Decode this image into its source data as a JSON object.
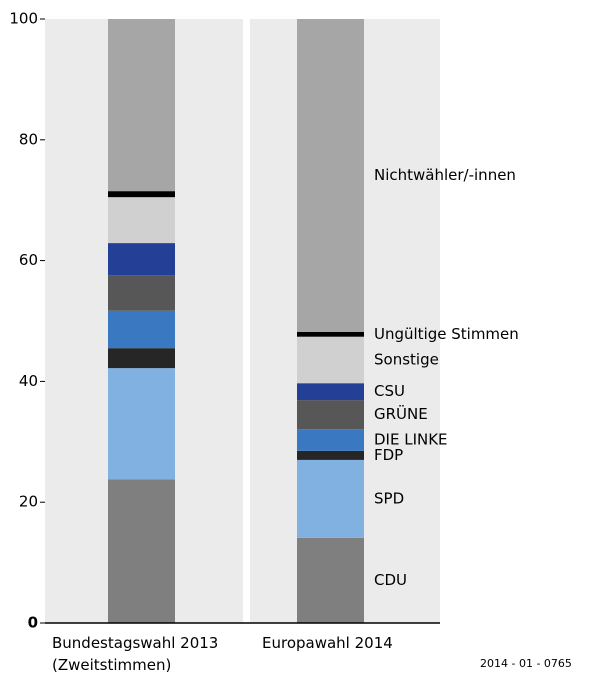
{
  "chart_data": {
    "type": "stacked-bar",
    "categories": [
      "Bundestagswahl 2013\n(Zweitstimmen)",
      "Europawahl 2014"
    ],
    "series": [
      {
        "name": "CDU",
        "color": "#7f7f7f",
        "values": [
          23.8,
          14.1
        ]
      },
      {
        "name": "SPD",
        "color": "#80b1e1",
        "values": [
          18.4,
          12.9
        ]
      },
      {
        "name": "FDP",
        "color": "#262626",
        "values": [
          3.3,
          1.5
        ]
      },
      {
        "name": "DIE LINKE",
        "color": "#3b78c2",
        "values": [
          6.2,
          3.6
        ]
      },
      {
        "name": "GRÜNE",
        "color": "#575757",
        "values": [
          5.9,
          4.8
        ]
      },
      {
        "name": "CSU",
        "color": "#233f96",
        "values": [
          5.3,
          2.8
        ]
      },
      {
        "name": "Sonstige",
        "color": "#d0d0d0",
        "values": [
          7.6,
          7.7
        ]
      },
      {
        "name": "Ungültige Stimmen",
        "color": "#000000",
        "values": [
          1.0,
          0.8
        ]
      },
      {
        "name": "Nichtwähler/-innen",
        "color": "#a6a6a6",
        "values": [
          28.5,
          51.8
        ]
      }
    ],
    "ylim": [
      0,
      100
    ],
    "yticks": [
      0,
      20,
      40,
      60,
      80,
      100
    ],
    "source": "2014 - 01 - 0765"
  }
}
